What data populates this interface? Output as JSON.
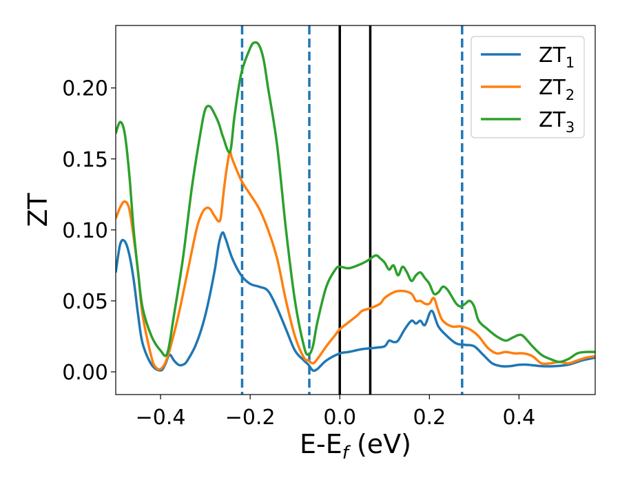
{
  "chart_data": {
    "type": "line",
    "xlabel_main": "E-E",
    "xlabel_sub": "f",
    "xlabel_unit": " (eV)",
    "ylabel": "ZT",
    "xlim": [
      -0.5,
      0.57
    ],
    "ylim": [
      -0.016,
      0.244
    ],
    "xticks": [
      -0.4,
      -0.2,
      0.0,
      0.2,
      0.4
    ],
    "xtick_labels": [
      "−0.4",
      "−0.2",
      "0.0",
      "0.2",
      "0.4"
    ],
    "yticks": [
      0.0,
      0.05,
      0.1,
      0.15,
      0.2
    ],
    "ytick_labels": [
      "0.00",
      "0.05",
      "0.10",
      "0.15",
      "0.20"
    ],
    "grid": false,
    "legend_position": "top-right",
    "vlines_dashed": [
      -0.218,
      -0.068,
      0.273
    ],
    "vlines_solid": [
      0.0,
      0.068
    ],
    "colors": {
      "dashed_line": "#1f77b4",
      "solid_line": "#000000"
    },
    "series": [
      {
        "name_main": "ZT",
        "name_sub": "1",
        "color": "#1f77b4",
        "points": [
          [
            -0.5,
            0.07
          ],
          [
            -0.49,
            0.09
          ],
          [
            -0.48,
            0.092
          ],
          [
            -0.47,
            0.083
          ],
          [
            -0.46,
            0.065
          ],
          [
            -0.45,
            0.04
          ],
          [
            -0.44,
            0.02
          ],
          [
            -0.42,
            0.005
          ],
          [
            -0.4,
            0.001
          ],
          [
            -0.39,
            0.005
          ],
          [
            -0.38,
            0.012
          ],
          [
            -0.37,
            0.008
          ],
          [
            -0.36,
            0.005
          ],
          [
            -0.35,
            0.005
          ],
          [
            -0.34,
            0.008
          ],
          [
            -0.32,
            0.02
          ],
          [
            -0.3,
            0.04
          ],
          [
            -0.28,
            0.07
          ],
          [
            -0.27,
            0.09
          ],
          [
            -0.262,
            0.098
          ],
          [
            -0.255,
            0.094
          ],
          [
            -0.24,
            0.08
          ],
          [
            -0.22,
            0.068
          ],
          [
            -0.2,
            0.062
          ],
          [
            -0.18,
            0.06
          ],
          [
            -0.16,
            0.057
          ],
          [
            -0.14,
            0.045
          ],
          [
            -0.12,
            0.03
          ],
          [
            -0.1,
            0.015
          ],
          [
            -0.08,
            0.008
          ],
          [
            -0.07,
            0.005
          ],
          [
            -0.06,
            0.001
          ],
          [
            -0.05,
            0.002
          ],
          [
            -0.03,
            0.008
          ],
          [
            0.0,
            0.013
          ],
          [
            0.02,
            0.014
          ],
          [
            0.05,
            0.016
          ],
          [
            0.08,
            0.017
          ],
          [
            0.1,
            0.018
          ],
          [
            0.11,
            0.022
          ],
          [
            0.12,
            0.021
          ],
          [
            0.13,
            0.022
          ],
          [
            0.145,
            0.03
          ],
          [
            0.16,
            0.036
          ],
          [
            0.17,
            0.034
          ],
          [
            0.18,
            0.036
          ],
          [
            0.19,
            0.033
          ],
          [
            0.205,
            0.043
          ],
          [
            0.22,
            0.032
          ],
          [
            0.24,
            0.025
          ],
          [
            0.26,
            0.02
          ],
          [
            0.28,
            0.019
          ],
          [
            0.3,
            0.018
          ],
          [
            0.32,
            0.012
          ],
          [
            0.34,
            0.006
          ],
          [
            0.36,
            0.004
          ],
          [
            0.38,
            0.004
          ],
          [
            0.4,
            0.005
          ],
          [
            0.42,
            0.005
          ],
          [
            0.45,
            0.004
          ],
          [
            0.48,
            0.004
          ],
          [
            0.51,
            0.005
          ],
          [
            0.54,
            0.008
          ],
          [
            0.57,
            0.01
          ]
        ]
      },
      {
        "name_main": "ZT",
        "name_sub": "2",
        "color": "#ff7f0e",
        "points": [
          [
            -0.5,
            0.108
          ],
          [
            -0.49,
            0.116
          ],
          [
            -0.48,
            0.12
          ],
          [
            -0.47,
            0.115
          ],
          [
            -0.46,
            0.095
          ],
          [
            -0.45,
            0.07
          ],
          [
            -0.44,
            0.04
          ],
          [
            -0.42,
            0.01
          ],
          [
            -0.41,
            0.003
          ],
          [
            -0.4,
            0.002
          ],
          [
            -0.39,
            0.006
          ],
          [
            -0.38,
            0.015
          ],
          [
            -0.36,
            0.04
          ],
          [
            -0.34,
            0.07
          ],
          [
            -0.32,
            0.1
          ],
          [
            -0.31,
            0.11
          ],
          [
            -0.3,
            0.115
          ],
          [
            -0.29,
            0.115
          ],
          [
            -0.28,
            0.11
          ],
          [
            -0.27,
            0.106
          ],
          [
            -0.265,
            0.11
          ],
          [
            -0.258,
            0.13
          ],
          [
            -0.25,
            0.148
          ],
          [
            -0.245,
            0.155
          ],
          [
            -0.24,
            0.15
          ],
          [
            -0.22,
            0.135
          ],
          [
            -0.2,
            0.125
          ],
          [
            -0.18,
            0.115
          ],
          [
            -0.16,
            0.1
          ],
          [
            -0.14,
            0.08
          ],
          [
            -0.12,
            0.05
          ],
          [
            -0.1,
            0.025
          ],
          [
            -0.08,
            0.01
          ],
          [
            -0.07,
            0.008
          ],
          [
            -0.06,
            0.006
          ],
          [
            -0.05,
            0.009
          ],
          [
            -0.03,
            0.018
          ],
          [
            -0.01,
            0.026
          ],
          [
            0.0,
            0.03
          ],
          [
            0.02,
            0.035
          ],
          [
            0.04,
            0.04
          ],
          [
            0.05,
            0.043
          ],
          [
            0.07,
            0.045
          ],
          [
            0.09,
            0.048
          ],
          [
            0.1,
            0.052
          ],
          [
            0.12,
            0.056
          ],
          [
            0.14,
            0.057
          ],
          [
            0.16,
            0.055
          ],
          [
            0.17,
            0.05
          ],
          [
            0.18,
            0.05
          ],
          [
            0.19,
            0.048
          ],
          [
            0.2,
            0.048
          ],
          [
            0.21,
            0.052
          ],
          [
            0.22,
            0.043
          ],
          [
            0.23,
            0.036
          ],
          [
            0.25,
            0.032
          ],
          [
            0.27,
            0.032
          ],
          [
            0.29,
            0.03
          ],
          [
            0.31,
            0.025
          ],
          [
            0.33,
            0.017
          ],
          [
            0.35,
            0.013
          ],
          [
            0.37,
            0.014
          ],
          [
            0.39,
            0.013
          ],
          [
            0.41,
            0.013
          ],
          [
            0.43,
            0.011
          ],
          [
            0.45,
            0.006
          ],
          [
            0.47,
            0.006
          ],
          [
            0.49,
            0.007
          ],
          [
            0.51,
            0.006
          ],
          [
            0.53,
            0.008
          ],
          [
            0.55,
            0.01
          ],
          [
            0.57,
            0.011
          ]
        ]
      },
      {
        "name_main": "ZT",
        "name_sub": "3",
        "color": "#2ca02c",
        "points": [
          [
            -0.5,
            0.168
          ],
          [
            -0.49,
            0.176
          ],
          [
            -0.48,
            0.168
          ],
          [
            -0.47,
            0.14
          ],
          [
            -0.46,
            0.1
          ],
          [
            -0.45,
            0.07
          ],
          [
            -0.44,
            0.045
          ],
          [
            -0.42,
            0.025
          ],
          [
            -0.4,
            0.015
          ],
          [
            -0.385,
            0.013
          ],
          [
            -0.37,
            0.04
          ],
          [
            -0.35,
            0.08
          ],
          [
            -0.33,
            0.13
          ],
          [
            -0.31,
            0.17
          ],
          [
            -0.3,
            0.185
          ],
          [
            -0.29,
            0.187
          ],
          [
            -0.28,
            0.182
          ],
          [
            -0.27,
            0.175
          ],
          [
            -0.26,
            0.165
          ],
          [
            -0.245,
            0.155
          ],
          [
            -0.235,
            0.18
          ],
          [
            -0.22,
            0.21
          ],
          [
            -0.2,
            0.228
          ],
          [
            -0.19,
            0.232
          ],
          [
            -0.18,
            0.23
          ],
          [
            -0.17,
            0.22
          ],
          [
            -0.16,
            0.2
          ],
          [
            -0.14,
            0.16
          ],
          [
            -0.12,
            0.1
          ],
          [
            -0.1,
            0.05
          ],
          [
            -0.08,
            0.018
          ],
          [
            -0.07,
            0.012
          ],
          [
            -0.06,
            0.018
          ],
          [
            -0.05,
            0.035
          ],
          [
            -0.03,
            0.06
          ],
          [
            -0.01,
            0.072
          ],
          [
            0.0,
            0.074
          ],
          [
            0.02,
            0.073
          ],
          [
            0.04,
            0.075
          ],
          [
            0.06,
            0.078
          ],
          [
            0.08,
            0.082
          ],
          [
            0.09,
            0.08
          ],
          [
            0.1,
            0.077
          ],
          [
            0.11,
            0.072
          ],
          [
            0.12,
            0.075
          ],
          [
            0.13,
            0.068
          ],
          [
            0.14,
            0.074
          ],
          [
            0.15,
            0.07
          ],
          [
            0.16,
            0.064
          ],
          [
            0.17,
            0.068
          ],
          [
            0.18,
            0.07
          ],
          [
            0.19,
            0.066
          ],
          [
            0.2,
            0.062
          ],
          [
            0.21,
            0.055
          ],
          [
            0.22,
            0.056
          ],
          [
            0.23,
            0.06
          ],
          [
            0.24,
            0.058
          ],
          [
            0.25,
            0.053
          ],
          [
            0.26,
            0.048
          ],
          [
            0.27,
            0.046
          ],
          [
            0.28,
            0.048
          ],
          [
            0.29,
            0.05
          ],
          [
            0.3,
            0.046
          ],
          [
            0.31,
            0.036
          ],
          [
            0.33,
            0.03
          ],
          [
            0.35,
            0.025
          ],
          [
            0.37,
            0.022
          ],
          [
            0.385,
            0.024
          ],
          [
            0.4,
            0.026
          ],
          [
            0.41,
            0.025
          ],
          [
            0.43,
            0.018
          ],
          [
            0.45,
            0.012
          ],
          [
            0.47,
            0.009
          ],
          [
            0.49,
            0.007
          ],
          [
            0.51,
            0.009
          ],
          [
            0.53,
            0.013
          ],
          [
            0.55,
            0.014
          ],
          [
            0.57,
            0.014
          ]
        ]
      }
    ]
  }
}
